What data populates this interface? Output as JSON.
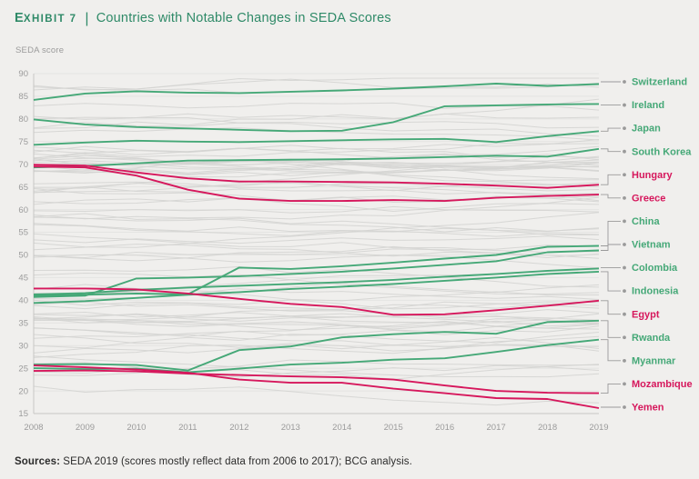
{
  "header": {
    "exhibit_first_letter": "E",
    "exhibit_rest": "XHIBIT 7",
    "separator": "|",
    "title": "Countries with Notable Changes in SEDA Scores",
    "title_color": "#2f8a68"
  },
  "colors": {
    "positive_trend": "#45a877",
    "negative_trend": "#d6175c",
    "background_line": "#d4d4d2",
    "grid_line": "#e4e4e2",
    "axis_line": "#c7c7c5",
    "axis_text": "#9b9b9b",
    "connector": "#9a9a9a",
    "page_background": "#f0efed"
  },
  "chart_data": {
    "type": "line",
    "title": "Countries with Notable Changes in SEDA Scores",
    "xlabel": "",
    "ylabel": "SEDA score",
    "x": [
      2008,
      2009,
      2010,
      2011,
      2012,
      2013,
      2014,
      2015,
      2016,
      2017,
      2018,
      2019
    ],
    "ylim": [
      15,
      90
    ],
    "yticks": [
      90,
      85,
      80,
      75,
      70,
      65,
      60,
      55,
      50,
      45,
      40,
      35,
      30,
      25,
      20,
      15
    ],
    "grid": true,
    "legend_position": "right-labels",
    "background_lines_decorative": {
      "count": 76,
      "seed": 13,
      "note": "unlabeled gray lines for all other countries"
    },
    "series": [
      {
        "name": "Switzerland",
        "trend": "up",
        "values": [
          84.2,
          85.6,
          86.1,
          85.8,
          85.7,
          86.0,
          86.3,
          86.7,
          87.2,
          87.8,
          87.3,
          87.7
        ]
      },
      {
        "name": "Ireland",
        "trend": "up",
        "values": [
          79.9,
          78.8,
          78.2,
          77.9,
          77.6,
          77.3,
          77.4,
          79.3,
          82.8,
          83.0,
          83.2,
          83.3
        ]
      },
      {
        "name": "Japan",
        "trend": "up",
        "values": [
          74.3,
          74.8,
          75.2,
          75.0,
          74.9,
          75.1,
          75.3,
          75.5,
          75.6,
          74.9,
          76.2,
          77.3
        ]
      },
      {
        "name": "South Korea",
        "trend": "up",
        "values": [
          69.3,
          69.6,
          70.2,
          70.8,
          70.9,
          71.0,
          71.1,
          71.3,
          71.6,
          71.9,
          71.7,
          73.4
        ]
      },
      {
        "name": "Hungary",
        "trend": "down",
        "values": [
          69.9,
          69.7,
          68.2,
          66.9,
          66.2,
          66.2,
          66.1,
          66.0,
          65.7,
          65.3,
          64.8,
          65.5
        ]
      },
      {
        "name": "Greece",
        "trend": "down",
        "values": [
          69.5,
          69.3,
          67.5,
          64.4,
          62.4,
          61.9,
          61.9,
          62.1,
          61.9,
          62.6,
          63.0,
          63.3
        ]
      },
      {
        "name": "China",
        "trend": "up",
        "values": [
          41.0,
          41.2,
          41.5,
          41.3,
          47.2,
          46.9,
          47.5,
          48.3,
          49.2,
          50.0,
          51.8,
          52.0
        ]
      },
      {
        "name": "Vietnam",
        "trend": "up",
        "values": [
          40.7,
          41.0,
          44.8,
          45.0,
          45.3,
          45.8,
          46.3,
          47.0,
          47.8,
          48.6,
          50.6,
          51.0
        ]
      },
      {
        "name": "Colombia",
        "trend": "up",
        "values": [
          41.3,
          41.6,
          42.3,
          42.8,
          43.2,
          43.6,
          44.0,
          44.5,
          45.2,
          45.8,
          46.5,
          47.0
        ]
      },
      {
        "name": "Indonesia",
        "trend": "up",
        "values": [
          39.4,
          39.8,
          40.5,
          41.2,
          41.8,
          42.5,
          43.0,
          43.6,
          44.3,
          45.0,
          45.8,
          46.3
        ]
      },
      {
        "name": "Egypt",
        "trend": "down",
        "values": [
          42.6,
          42.6,
          42.4,
          41.5,
          40.3,
          39.2,
          38.5,
          36.8,
          36.9,
          37.8,
          38.8,
          39.9
        ]
      },
      {
        "name": "Rwanda",
        "trend": "up",
        "values": [
          25.8,
          25.9,
          25.7,
          24.5,
          29.0,
          29.8,
          31.8,
          32.5,
          33.0,
          32.6,
          35.2,
          35.5
        ]
      },
      {
        "name": "Myanmar",
        "trend": "up",
        "values": [
          25.0,
          24.8,
          24.9,
          24.1,
          24.9,
          25.8,
          26.2,
          26.9,
          27.2,
          28.6,
          30.1,
          31.3
        ]
      },
      {
        "name": "Mozambique",
        "trend": "down",
        "values": [
          24.4,
          24.5,
          24.3,
          23.8,
          23.5,
          23.2,
          23.0,
          22.5,
          21.2,
          20.0,
          19.6,
          19.5
        ]
      },
      {
        "name": "Yemen",
        "trend": "down",
        "values": [
          25.6,
          25.2,
          24.7,
          24.0,
          22.5,
          21.8,
          21.8,
          20.5,
          19.5,
          18.4,
          18.2,
          16.2
        ]
      }
    ]
  },
  "y_axis_title": "SEDA score",
  "footer": {
    "sources_label": "Sources:",
    "sources_text": " SEDA 2019 (scores mostly reflect data from 2006 to 2017); BCG analysis."
  }
}
